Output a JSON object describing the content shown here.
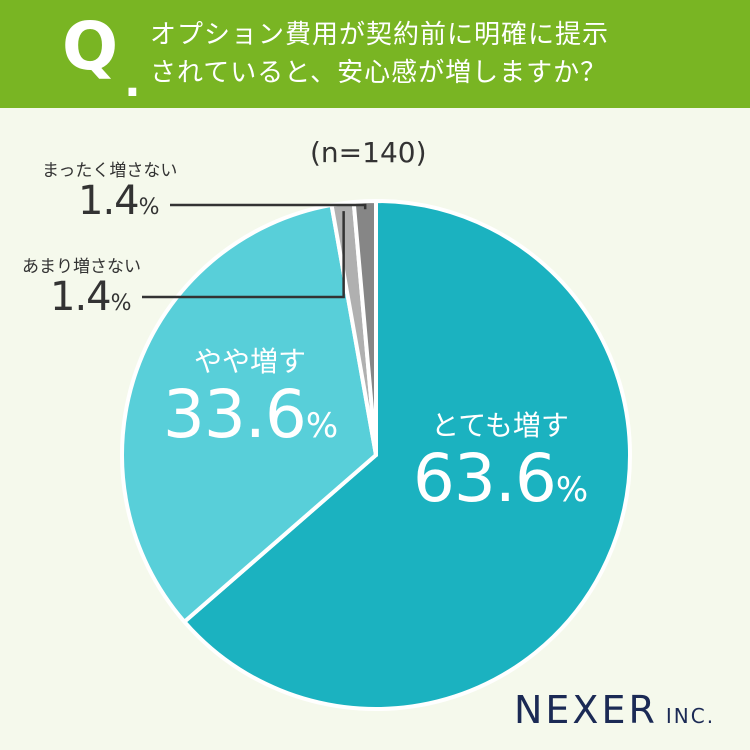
{
  "header": {
    "q_mark": "Q",
    "q_dot": ".",
    "question_line1": "オプション費用が契約前に明確に提示",
    "question_line2": "されていると、安心感が増しますか？"
  },
  "n_label": "(n=140)",
  "logo": {
    "name": "NEXER",
    "suffix": "INC."
  },
  "colors": {
    "header": "#79b523",
    "background": "#f5f9ec",
    "slice_very": "#1bb2c0",
    "slice_somewhat": "#58cfd9",
    "slice_not_much": "#b0b0b0",
    "slice_not_at_all": "#868686"
  },
  "chart_data": {
    "type": "pie",
    "start": "top",
    "direction": "clockwise",
    "slices": [
      {
        "label": "とても増す",
        "value": 63.6,
        "display": "63.6",
        "unit": "%",
        "color": "#1bb2c0"
      },
      {
        "label": "やや増す",
        "value": 33.6,
        "display": "33.6",
        "unit": "%",
        "color": "#58cfd9"
      },
      {
        "label": "あまり増さない",
        "value": 1.4,
        "display": "1.4",
        "unit": "%",
        "color": "#b0b0b0"
      },
      {
        "label": "まったく増さない",
        "value": 1.4,
        "display": "1.4",
        "unit": "%",
        "color": "#868686"
      }
    ]
  }
}
